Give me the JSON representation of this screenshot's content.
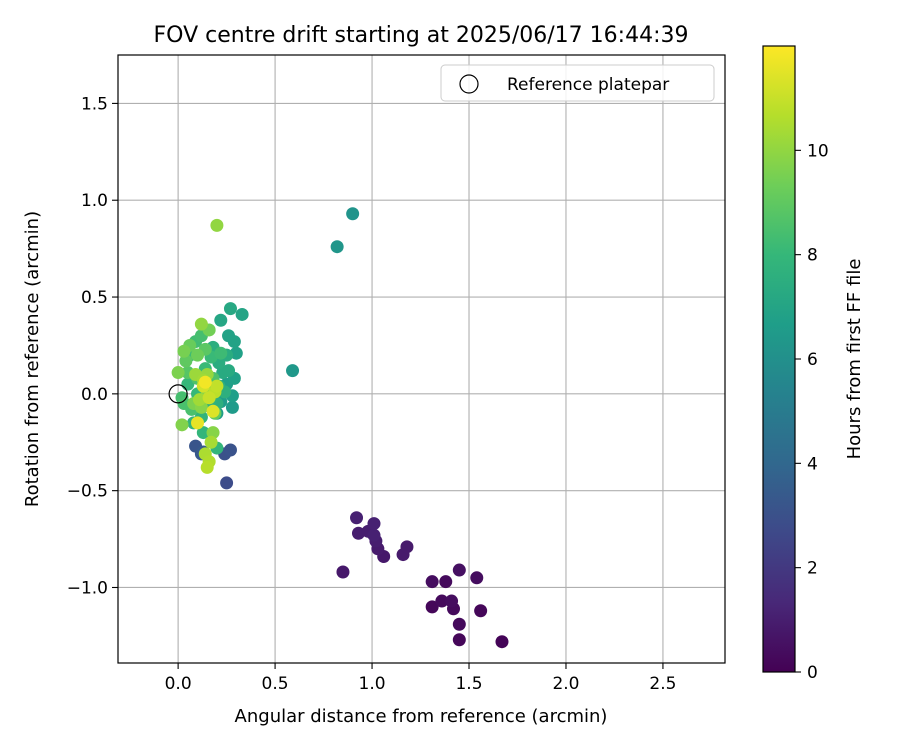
{
  "chart_data": {
    "type": "scatter",
    "title": "FOV centre drift starting at 2025/06/17 16:44:39",
    "xlabel": "Angular distance from reference (arcmin)",
    "ylabel": "Rotation from reference (arcmin)",
    "xlim": [
      -0.31,
      2.82
    ],
    "ylim": [
      -1.39,
      1.75
    ],
    "xticks": [
      0.0,
      0.5,
      1.0,
      1.5,
      2.0,
      2.5
    ],
    "xtick_labels": [
      "0.0",
      "0.5",
      "1.0",
      "1.5",
      "2.0",
      "2.5"
    ],
    "yticks": [
      -1.0,
      -0.5,
      0.0,
      0.5,
      1.0,
      1.5
    ],
    "ytick_labels": [
      "−1.0",
      "−0.5",
      "0.0",
      "0.5",
      "1.0",
      "1.5"
    ],
    "grid": true,
    "legend": {
      "placement": "top-right",
      "entries": [
        {
          "label": "Reference platepar",
          "marker": "hollow-circle"
        }
      ]
    },
    "reference_point": {
      "x": 0.0,
      "y": 0.0
    },
    "colorbar": {
      "label": "Hours from first FF file",
      "min": 0,
      "max": 12,
      "ticks": [
        0,
        2,
        4,
        6,
        8,
        10
      ],
      "tick_labels": [
        "0",
        "2",
        "4",
        "6",
        "8",
        "10"
      ],
      "colormap": "viridis"
    },
    "colormap_stops": [
      "#440154",
      "#482878",
      "#3e4989",
      "#31688e",
      "#26828e",
      "#1f9e89",
      "#35b779",
      "#6ece58",
      "#b5de2b",
      "#fde725"
    ],
    "points": [
      {
        "x": 1.67,
        "y": -1.28,
        "h": 0.1
      },
      {
        "x": 1.45,
        "y": -1.27,
        "h": 0.2
      },
      {
        "x": 1.45,
        "y": -1.19,
        "h": 0.3
      },
      {
        "x": 1.31,
        "y": -1.1,
        "h": 0.2
      },
      {
        "x": 1.42,
        "y": -1.11,
        "h": 0.3
      },
      {
        "x": 1.56,
        "y": -1.12,
        "h": 0.2
      },
      {
        "x": 1.36,
        "y": -1.07,
        "h": 0.3
      },
      {
        "x": 1.41,
        "y": -1.07,
        "h": 0.4
      },
      {
        "x": 1.31,
        "y": -0.97,
        "h": 0.4
      },
      {
        "x": 1.38,
        "y": -0.97,
        "h": 0.3
      },
      {
        "x": 1.54,
        "y": -0.95,
        "h": 0.4
      },
      {
        "x": 1.45,
        "y": -0.91,
        "h": 0.5
      },
      {
        "x": 0.85,
        "y": -0.92,
        "h": 0.8
      },
      {
        "x": 1.06,
        "y": -0.84,
        "h": 0.8
      },
      {
        "x": 1.16,
        "y": -0.83,
        "h": 0.9
      },
      {
        "x": 1.03,
        "y": -0.8,
        "h": 0.9
      },
      {
        "x": 1.18,
        "y": -0.79,
        "h": 0.9
      },
      {
        "x": 1.02,
        "y": -0.76,
        "h": 1.0
      },
      {
        "x": 0.93,
        "y": -0.72,
        "h": 1.0
      },
      {
        "x": 0.98,
        "y": -0.71,
        "h": 1.0
      },
      {
        "x": 1.01,
        "y": -0.73,
        "h": 1.1
      },
      {
        "x": 1.01,
        "y": -0.67,
        "h": 1.1
      },
      {
        "x": 0.92,
        "y": -0.64,
        "h": 1.1
      },
      {
        "x": 0.25,
        "y": -0.46,
        "h": 2.8
      },
      {
        "x": 0.24,
        "y": -0.31,
        "h": 3.0
      },
      {
        "x": 0.27,
        "y": -0.29,
        "h": 3.1
      },
      {
        "x": 0.09,
        "y": -0.27,
        "h": 3.2
      },
      {
        "x": 0.12,
        "y": -0.31,
        "h": 3.3
      },
      {
        "x": 0.13,
        "y": -0.3,
        "h": 3.4
      },
      {
        "x": 0.9,
        "y": 0.93,
        "h": 6.2
      },
      {
        "x": 0.82,
        "y": 0.76,
        "h": 6.3
      },
      {
        "x": 0.59,
        "y": 0.12,
        "h": 6.4
      },
      {
        "x": 0.28,
        "y": -0.07,
        "h": 6.5
      },
      {
        "x": 0.2,
        "y": -0.1,
        "h": 6.6
      },
      {
        "x": 0.22,
        "y": -0.04,
        "h": 6.6
      },
      {
        "x": 0.28,
        "y": -0.01,
        "h": 6.7
      },
      {
        "x": 0.25,
        "y": 0.05,
        "h": 6.7
      },
      {
        "x": 0.29,
        "y": 0.08,
        "h": 6.8
      },
      {
        "x": 0.3,
        "y": 0.21,
        "h": 6.8
      },
      {
        "x": 0.26,
        "y": 0.3,
        "h": 6.9
      },
      {
        "x": 0.29,
        "y": 0.27,
        "h": 6.9
      },
      {
        "x": 0.33,
        "y": 0.41,
        "h": 7.0
      },
      {
        "x": 0.22,
        "y": 0.38,
        "h": 7.1
      },
      {
        "x": 0.27,
        "y": 0.44,
        "h": 7.2
      },
      {
        "x": 0.23,
        "y": 0.11,
        "h": 7.3
      },
      {
        "x": 0.26,
        "y": 0.12,
        "h": 7.3
      },
      {
        "x": 0.25,
        "y": 0.2,
        "h": 7.4
      },
      {
        "x": 0.21,
        "y": 0.16,
        "h": 7.4
      },
      {
        "x": 0.18,
        "y": 0.24,
        "h": 7.5
      },
      {
        "x": 0.21,
        "y": 0.04,
        "h": 7.5
      },
      {
        "x": 0.24,
        "y": 0.01,
        "h": 7.6
      },
      {
        "x": 0.2,
        "y": -0.05,
        "h": 7.6
      },
      {
        "x": 0.17,
        "y": -0.03,
        "h": 7.7
      },
      {
        "x": 0.15,
        "y": -0.06,
        "h": 7.7
      },
      {
        "x": 0.12,
        "y": -0.12,
        "h": 7.8
      },
      {
        "x": 0.08,
        "y": -0.15,
        "h": 7.8
      },
      {
        "x": 0.13,
        "y": -0.2,
        "h": 7.9
      },
      {
        "x": 0.2,
        "y": -0.28,
        "h": 7.9
      },
      {
        "x": 0.1,
        "y": 0.0,
        "h": 8.0
      },
      {
        "x": 0.05,
        "y": 0.05,
        "h": 8.0
      },
      {
        "x": 0.14,
        "y": 0.13,
        "h": 8.1
      },
      {
        "x": 0.17,
        "y": 0.19,
        "h": 8.1
      },
      {
        "x": 0.22,
        "y": 0.21,
        "h": 8.2
      },
      {
        "x": 0.06,
        "y": 0.2,
        "h": 8.2
      },
      {
        "x": 0.09,
        "y": 0.27,
        "h": 8.3
      },
      {
        "x": 0.12,
        "y": 0.3,
        "h": 8.4
      },
      {
        "x": 0.02,
        "y": -0.02,
        "h": 8.4
      },
      {
        "x": 0.03,
        "y": -0.05,
        "h": 8.5
      },
      {
        "x": 0.07,
        "y": -0.08,
        "h": 8.5
      },
      {
        "x": 0.1,
        "y": 0.08,
        "h": 8.6
      },
      {
        "x": 0.18,
        "y": 0.08,
        "h": 8.6
      },
      {
        "x": 0.15,
        "y": 0.04,
        "h": 8.7
      },
      {
        "x": 0.05,
        "y": 0.11,
        "h": 8.8
      },
      {
        "x": 0.14,
        "y": 0.23,
        "h": 8.9
      },
      {
        "x": 0.04,
        "y": 0.17,
        "h": 9.0
      },
      {
        "x": 0.19,
        "y": -0.1,
        "h": 9.1
      },
      {
        "x": 0.06,
        "y": 0.25,
        "h": 9.2
      },
      {
        "x": 0.1,
        "y": 0.2,
        "h": 9.3
      },
      {
        "x": 0.16,
        "y": 0.33,
        "h": 9.4
      },
      {
        "x": 0.03,
        "y": 0.22,
        "h": 9.5
      },
      {
        "x": 0.0,
        "y": 0.11,
        "h": 9.6
      },
      {
        "x": 0.08,
        "y": -0.05,
        "h": 9.6
      },
      {
        "x": 0.02,
        "y": -0.16,
        "h": 9.7
      },
      {
        "x": 0.12,
        "y": -0.07,
        "h": 9.8
      },
      {
        "x": 0.18,
        "y": -0.2,
        "h": 9.8
      },
      {
        "x": 0.15,
        "y": 0.01,
        "h": 9.9
      },
      {
        "x": 0.2,
        "y": 0.87,
        "h": 10.0
      },
      {
        "x": 0.12,
        "y": 0.36,
        "h": 10.0
      },
      {
        "x": 0.15,
        "y": 0.1,
        "h": 10.1
      },
      {
        "x": 0.09,
        "y": 0.1,
        "h": 10.2
      },
      {
        "x": 0.13,
        "y": 0.07,
        "h": 10.3
      },
      {
        "x": 0.11,
        "y": -0.03,
        "h": 10.3
      },
      {
        "x": 0.17,
        "y": -0.25,
        "h": 10.4
      },
      {
        "x": 0.14,
        "y": -0.31,
        "h": 10.5
      },
      {
        "x": 0.16,
        "y": -0.35,
        "h": 10.6
      },
      {
        "x": 0.15,
        "y": -0.38,
        "h": 10.7
      },
      {
        "x": 0.19,
        "y": 0.01,
        "h": 10.8
      },
      {
        "x": 0.2,
        "y": 0.04,
        "h": 10.9
      },
      {
        "x": 0.16,
        "y": -0.02,
        "h": 11.0
      },
      {
        "x": 0.13,
        "y": 0.04,
        "h": 11.2
      },
      {
        "x": 0.18,
        "y": -0.09,
        "h": 11.4
      },
      {
        "x": 0.1,
        "y": -0.15,
        "h": 11.6
      },
      {
        "x": 0.14,
        "y": 0.06,
        "h": 11.8
      }
    ]
  }
}
